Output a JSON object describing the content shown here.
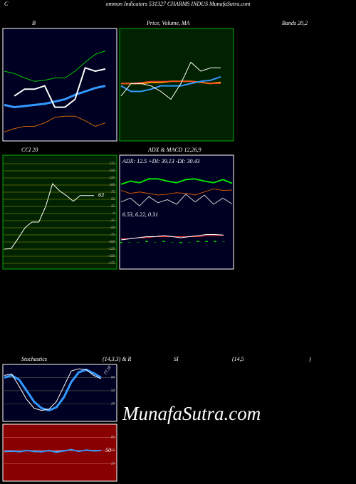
{
  "header": {
    "c": "C",
    "title": "ommon  Indicators 531327 CHARMS INDUS MunafaSutra.com"
  },
  "captions": [
    "B",
    "Price, Volume, MA",
    "Bands 20,2",
    "CCI 20",
    "ADX  & MACD 12,26,9",
    "Stochastics",
    "(14,3,3) & R",
    "SI",
    "(14,5",
    ")"
  ],
  "watermark": "MunafaSutra.com",
  "chart_data": [
    {
      "type": "line",
      "background": "#000022",
      "border": "#ffffff",
      "ylim": [
        0,
        100
      ],
      "series": [
        {
          "color": "#00cc00",
          "width": 1,
          "values": [
            62,
            60,
            56,
            53,
            54,
            56,
            56,
            62,
            70,
            77,
            80
          ]
        },
        {
          "color": "#3399ff",
          "width": 3,
          "values": [
            32,
            30,
            31,
            32,
            33,
            35,
            37,
            41,
            44,
            47,
            49
          ]
        },
        {
          "color": "#cc6600",
          "width": 1,
          "values": [
            8,
            11,
            13,
            13,
            16,
            21,
            22,
            22,
            18,
            13,
            16
          ]
        },
        {
          "color": "#ffffff",
          "width": 2,
          "values": [
            null,
            40,
            46,
            46,
            49,
            30,
            30,
            37,
            65,
            62,
            64
          ]
        }
      ]
    },
    {
      "type": "line",
      "background": "#002200",
      "border": "#00aa00",
      "ylim": [
        0,
        100
      ],
      "series": [
        {
          "color": "#ff9900",
          "width": 2,
          "values": [
            51,
            51,
            51,
            52,
            52,
            53,
            53,
            53,
            52,
            51,
            52
          ]
        },
        {
          "color": "#ff3333",
          "width": 1,
          "values": [
            51,
            51,
            52,
            53,
            53,
            53,
            53,
            53,
            52,
            51,
            51
          ]
        },
        {
          "color": "#3399ff",
          "width": 2,
          "values": [
            49,
            44,
            44,
            46,
            49,
            49,
            49,
            51,
            53,
            54,
            57
          ]
        },
        {
          "color": "#ffffff",
          "width": 1,
          "values": [
            40,
            51,
            51,
            49,
            44,
            37,
            51,
            70,
            62,
            65,
            65
          ]
        }
      ]
    },
    {
      "type": "line",
      "background": "#002200",
      "border": "#00aa00",
      "grid": true,
      "grid_color": "#667700",
      "ylim": [
        -195,
        205
      ],
      "yticks": [
        175,
        150,
        125,
        100,
        75,
        50,
        25,
        0,
        -25,
        -50,
        -75,
        -100,
        -125,
        -150,
        -175
      ],
      "last_label": true,
      "series": [
        {
          "color": "#ffffff",
          "width": 1,
          "values": [
            -125,
            -123,
            -88,
            -50,
            -30,
            -30,
            25,
            105,
            80,
            63,
            43,
            63,
            63,
            63
          ]
        }
      ]
    },
    {
      "type": "line",
      "background": "#000022",
      "border": "#ffffff",
      "ylim": [
        0,
        60
      ],
      "annotation": "ADX: 12.5  +DI: 39.13  -DI: 30.43",
      "series": [
        {
          "color": "#00dd00",
          "width": 2,
          "values": [
            38,
            42,
            40,
            45,
            45,
            42,
            40,
            44,
            45,
            42,
            40,
            44,
            39.13
          ]
        },
        {
          "color": "#cc5500",
          "width": 1,
          "values": [
            30,
            26,
            28,
            26,
            24,
            25,
            27,
            26,
            24,
            28,
            32,
            30,
            30.43
          ]
        },
        {
          "color": "#cccccc",
          "width": 1,
          "values": [
            15,
            20,
            10,
            22,
            14,
            18,
            12,
            25,
            15,
            24,
            12,
            20,
            12.5
          ]
        }
      ]
    },
    {
      "type": "line",
      "ylim": [
        -20,
        20
      ],
      "annotation": "6.53,  6.22,  0.31",
      "series": [
        {
          "color": "#00cc00",
          "style": "bars",
          "values": [
            -1,
            0,
            0,
            1,
            0,
            1,
            0,
            -1,
            0,
            1,
            1,
            1,
            0.31
          ]
        },
        {
          "color": "#ff3333",
          "width": 1,
          "values": [
            3,
            3,
            4,
            4,
            5,
            5,
            5,
            5,
            5,
            5,
            6,
            6,
            6.22
          ]
        },
        {
          "color": "#ffffff",
          "width": 1,
          "values": [
            2,
            3,
            4,
            5,
            5,
            6,
            5,
            4,
            5,
            6,
            7,
            7,
            6.53
          ]
        }
      ]
    },
    {
      "type": "line",
      "background": "#000022",
      "border": "#ffffff",
      "grid": true,
      "grid_color": "#444444",
      "ylim": [
        -20,
        110
      ],
      "yticks": [
        80,
        50,
        20
      ],
      "series": [
        {
          "color": "#3399ff",
          "width": 3,
          "values": [
            80,
            85,
            75,
            50,
            25,
            10,
            5,
            12,
            35,
            70,
            92,
            98,
            90,
            80
          ]
        },
        {
          "color": "#ffffff",
          "width": 1,
          "values": [
            85,
            88,
            60,
            30,
            10,
            5,
            8,
            25,
            60,
            95,
            100,
            98,
            85,
            77.1
          ],
          "value_labels": [
            null,
            null,
            null,
            null,
            null,
            null,
            null,
            null,
            null,
            null,
            null,
            null,
            null,
            "77.10"
          ]
        }
      ]
    },
    {
      "type": "line",
      "background": "#880000",
      "border": "#ffffff",
      "grid": true,
      "grid_color": "#bb4444",
      "ylim": [
        -20,
        110
      ],
      "yticks": [
        80,
        50,
        20
      ],
      "last_label": true,
      "series": [
        {
          "color": "#ffffff",
          "width": 1,
          "values": [
            47,
            48,
            48,
            49,
            49,
            48,
            49,
            48,
            50,
            51,
            49,
            50,
            50,
            50
          ]
        },
        {
          "color": "#3399ff",
          "width": 2,
          "values": [
            48,
            49,
            47,
            50,
            48,
            47,
            50,
            46,
            49,
            52,
            48,
            51,
            49,
            50
          ]
        }
      ]
    }
  ]
}
